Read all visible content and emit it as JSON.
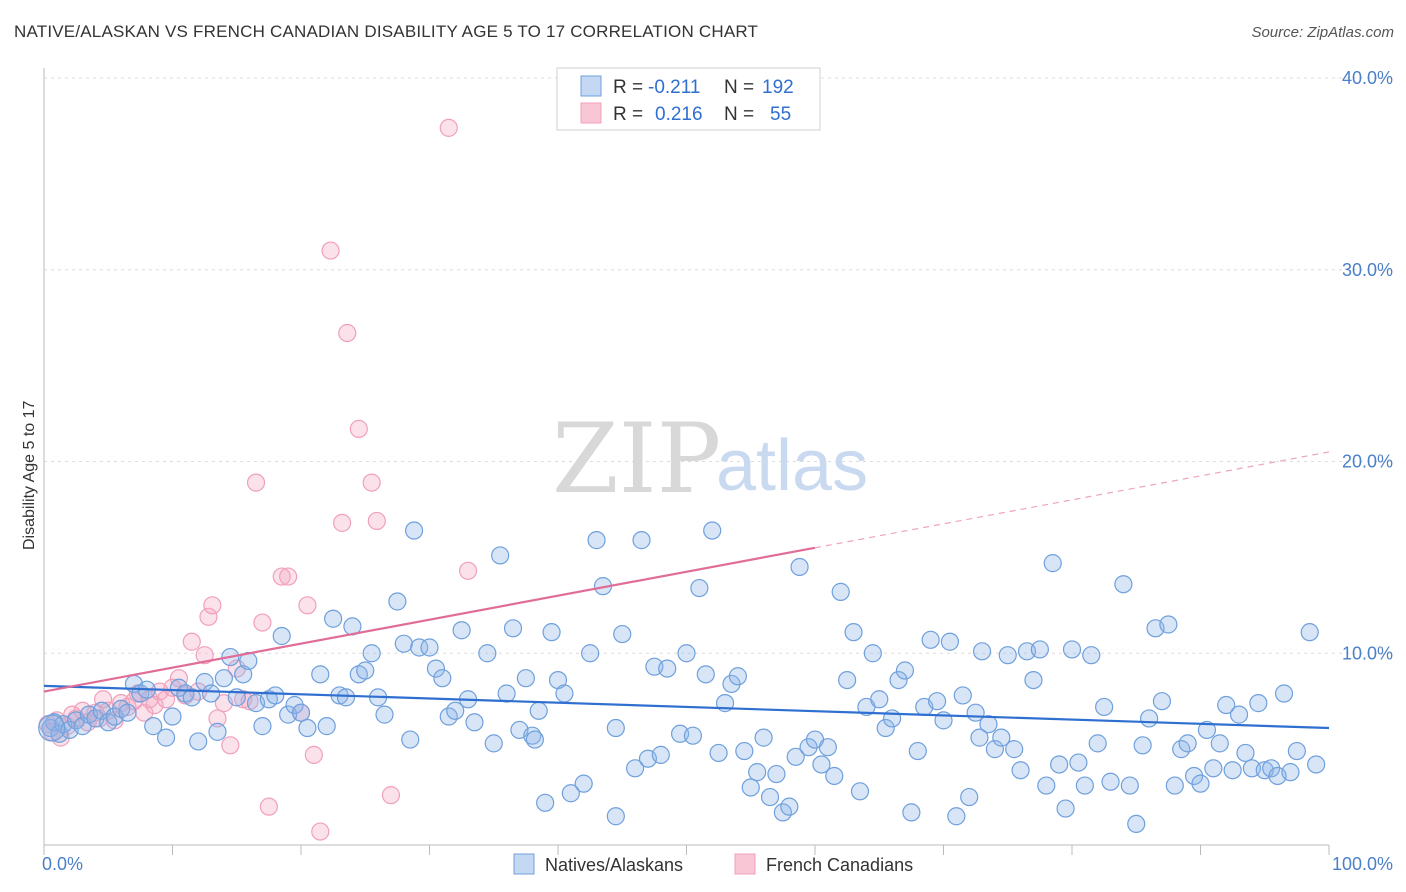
{
  "title": "NATIVE/ALASKAN VS FRENCH CANADIAN DISABILITY AGE 5 TO 17 CORRELATION CHART",
  "source": "Source: ZipAtlas.com",
  "watermark": {
    "zip": "ZIP",
    "atlas": "atlas"
  },
  "colors": {
    "blue": "#6fa0dc",
    "pink": "#f0a0bc",
    "blue_line": "#2f6fd0",
    "pink_line": "#e06d98",
    "tick": "#4a7fc9"
  },
  "legend": {
    "rows": [
      {
        "r_label": "R =",
        "r_value": "-0.211",
        "n_label": "N =",
        "n_value": "192"
      },
      {
        "r_label": "R =",
        "r_value": "0.216",
        "n_label": "N =",
        "n_value": "55"
      }
    ]
  },
  "bottom_legend": [
    "Natives/Alaskans",
    "French Canadians"
  ],
  "chart_data": {
    "type": "scatter",
    "title": "NATIVE/ALASKAN VS FRENCH CANADIAN DISABILITY AGE 5 TO 17 CORRELATION CHART",
    "ylabel": "Disability Age 5 to 17",
    "xlabel": "",
    "xlim": [
      0,
      100
    ],
    "ylim": [
      0,
      40
    ],
    "x_tick_labels": [
      "0.0%",
      "100.0%"
    ],
    "y_ticks": [
      10,
      20,
      30,
      40
    ],
    "y_tick_labels": [
      "10.0%",
      "20.0%",
      "30.0%",
      "40.0%"
    ],
    "grid": "horizontal dashed",
    "legend_position": "top-center",
    "series": [
      {
        "name": "Natives/Alaskans",
        "color": "#6fa0dc",
        "r": -0.211,
        "n": 192,
        "trend": {
          "x": [
            0,
            100
          ],
          "y": [
            8.3,
            6.1
          ]
        },
        "points": [
          [
            0.5,
            6.1
          ],
          [
            0.8,
            6.4
          ],
          [
            1.2,
            5.8
          ],
          [
            1.5,
            6.3
          ],
          [
            2.0,
            6.0
          ],
          [
            2.5,
            6.5
          ],
          [
            3.0,
            6.2
          ],
          [
            3.5,
            6.8
          ],
          [
            4.0,
            6.6
          ],
          [
            4.5,
            7.0
          ],
          [
            5.0,
            6.4
          ],
          [
            5.5,
            6.7
          ],
          [
            6.0,
            7.1
          ],
          [
            6.5,
            6.9
          ],
          [
            7.0,
            8.4
          ],
          [
            7.5,
            7.9
          ],
          [
            8.0,
            8.1
          ],
          [
            8.5,
            6.2
          ],
          [
            9.5,
            5.6
          ],
          [
            10.0,
            6.7
          ],
          [
            10.5,
            8.2
          ],
          [
            11.0,
            7.9
          ],
          [
            11.5,
            7.7
          ],
          [
            12.0,
            5.4
          ],
          [
            12.5,
            8.5
          ],
          [
            13.0,
            7.9
          ],
          [
            13.5,
            5.9
          ],
          [
            14.0,
            8.7
          ],
          [
            14.5,
            9.8
          ],
          [
            15.0,
            7.7
          ],
          [
            15.5,
            8.9
          ],
          [
            15.9,
            9.6
          ],
          [
            16.5,
            7.4
          ],
          [
            17.0,
            6.2
          ],
          [
            17.5,
            7.6
          ],
          [
            18.0,
            7.8
          ],
          [
            18.5,
            10.9
          ],
          [
            19.0,
            6.8
          ],
          [
            19.5,
            7.3
          ],
          [
            20.0,
            6.9
          ],
          [
            20.5,
            6.1
          ],
          [
            21.5,
            8.9
          ],
          [
            22.0,
            6.2
          ],
          [
            22.5,
            11.8
          ],
          [
            23.0,
            7.8
          ],
          [
            23.5,
            7.7
          ],
          [
            24.0,
            11.4
          ],
          [
            24.5,
            8.9
          ],
          [
            25.0,
            9.1
          ],
          [
            25.5,
            10.0
          ],
          [
            26.0,
            7.7
          ],
          [
            26.5,
            6.8
          ],
          [
            27.5,
            12.7
          ],
          [
            28.0,
            10.5
          ],
          [
            28.5,
            5.5
          ],
          [
            28.8,
            16.4
          ],
          [
            29.2,
            10.3
          ],
          [
            30.0,
            10.3
          ],
          [
            30.5,
            9.2
          ],
          [
            31.0,
            8.7
          ],
          [
            31.5,
            6.7
          ],
          [
            32.0,
            7.0
          ],
          [
            32.5,
            11.2
          ],
          [
            33.0,
            7.6
          ],
          [
            33.5,
            6.4
          ],
          [
            34.5,
            10.0
          ],
          [
            35.0,
            5.3
          ],
          [
            35.5,
            15.1
          ],
          [
            36.0,
            7.9
          ],
          [
            36.5,
            11.3
          ],
          [
            37.0,
            6.0
          ],
          [
            37.5,
            8.7
          ],
          [
            38.0,
            5.7
          ],
          [
            38.5,
            7.0
          ],
          [
            39.0,
            2.2
          ],
          [
            39.5,
            11.1
          ],
          [
            40.0,
            8.6
          ],
          [
            40.5,
            7.9
          ],
          [
            41.0,
            2.7
          ],
          [
            42.0,
            3.2
          ],
          [
            42.5,
            10.0
          ],
          [
            43.0,
            15.9
          ],
          [
            43.5,
            13.5
          ],
          [
            44.5,
            6.1
          ],
          [
            44.5,
            1.5
          ],
          [
            45.0,
            11.0
          ],
          [
            46.0,
            4.0
          ],
          [
            46.5,
            15.9
          ],
          [
            47.0,
            4.5
          ],
          [
            47.5,
            9.3
          ],
          [
            48.0,
            4.7
          ],
          [
            48.5,
            9.2
          ],
          [
            49.5,
            5.8
          ],
          [
            50.0,
            10.0
          ],
          [
            50.5,
            5.7
          ],
          [
            51.0,
            13.4
          ],
          [
            51.5,
            8.9
          ],
          [
            52.0,
            16.4
          ],
          [
            52.5,
            4.8
          ],
          [
            53.0,
            7.4
          ],
          [
            53.5,
            8.4
          ],
          [
            54.0,
            8.8
          ],
          [
            54.5,
            4.9
          ],
          [
            55.0,
            3.0
          ],
          [
            55.5,
            3.8
          ],
          [
            56.0,
            5.6
          ],
          [
            56.5,
            2.5
          ],
          [
            57.0,
            3.7
          ],
          [
            57.5,
            1.7
          ],
          [
            58.0,
            2.0
          ],
          [
            58.5,
            4.6
          ],
          [
            58.8,
            14.5
          ],
          [
            59.5,
            5.1
          ],
          [
            60.0,
            5.5
          ],
          [
            60.5,
            4.2
          ],
          [
            61.0,
            5.1
          ],
          [
            61.5,
            3.6
          ],
          [
            62.0,
            13.2
          ],
          [
            62.5,
            8.6
          ],
          [
            63.0,
            11.1
          ],
          [
            63.5,
            2.8
          ],
          [
            64.0,
            7.2
          ],
          [
            64.5,
            10.0
          ],
          [
            65.0,
            7.6
          ],
          [
            65.5,
            6.1
          ],
          [
            66.0,
            6.6
          ],
          [
            66.5,
            8.6
          ],
          [
            67.0,
            9.1
          ],
          [
            67.5,
            1.7
          ],
          [
            68.0,
            4.9
          ],
          [
            68.5,
            7.2
          ],
          [
            69.0,
            10.7
          ],
          [
            69.5,
            7.5
          ],
          [
            70.0,
            6.5
          ],
          [
            70.5,
            10.6
          ],
          [
            71.0,
            1.5
          ],
          [
            71.5,
            7.8
          ],
          [
            72.0,
            2.5
          ],
          [
            72.5,
            6.9
          ],
          [
            73.0,
            10.1
          ],
          [
            73.5,
            6.3
          ],
          [
            74.0,
            5.0
          ],
          [
            74.5,
            5.6
          ],
          [
            75.0,
            9.9
          ],
          [
            75.5,
            5.0
          ],
          [
            76.0,
            3.9
          ],
          [
            76.5,
            10.1
          ],
          [
            77.0,
            8.6
          ],
          [
            77.5,
            10.2
          ],
          [
            78.0,
            3.1
          ],
          [
            78.5,
            14.7
          ],
          [
            79.0,
            4.2
          ],
          [
            79.5,
            1.9
          ],
          [
            80.0,
            10.2
          ],
          [
            80.5,
            4.3
          ],
          [
            81.0,
            3.1
          ],
          [
            81.5,
            9.9
          ],
          [
            82.0,
            5.3
          ],
          [
            82.5,
            7.2
          ],
          [
            83.0,
            3.3
          ],
          [
            84.0,
            13.6
          ],
          [
            84.5,
            3.1
          ],
          [
            85.0,
            1.1
          ],
          [
            85.5,
            5.2
          ],
          [
            86.0,
            6.6
          ],
          [
            86.5,
            11.3
          ],
          [
            87.0,
            7.5
          ],
          [
            87.5,
            11.5
          ],
          [
            88.0,
            3.1
          ],
          [
            88.5,
            5.0
          ],
          [
            89.0,
            5.3
          ],
          [
            89.5,
            3.6
          ],
          [
            90.0,
            3.2
          ],
          [
            90.5,
            6.0
          ],
          [
            91.0,
            4.0
          ],
          [
            91.5,
            5.3
          ],
          [
            92.0,
            7.3
          ],
          [
            92.5,
            3.9
          ],
          [
            93.0,
            6.8
          ],
          [
            93.5,
            4.8
          ],
          [
            94.0,
            4.0
          ],
          [
            94.5,
            7.4
          ],
          [
            95.0,
            3.9
          ],
          [
            95.5,
            4.0
          ],
          [
            96.0,
            3.6
          ],
          [
            96.5,
            7.9
          ],
          [
            97.0,
            3.8
          ],
          [
            97.5,
            4.9
          ],
          [
            98.5,
            11.1
          ],
          [
            99.0,
            4.2
          ],
          [
            72.8,
            5.6
          ],
          [
            38.2,
            5.5
          ]
        ]
      },
      {
        "name": "French Canadians",
        "color": "#f0a0bc",
        "r": 0.216,
        "n": 55,
        "trend": {
          "x": [
            0,
            60
          ],
          "y": [
            8.0,
            15.5
          ]
        },
        "trend_dashed": {
          "x": [
            60,
            100
          ],
          "y": [
            15.5,
            20.5
          ]
        },
        "points": [
          [
            0.3,
            6.3
          ],
          [
            0.6,
            5.9
          ],
          [
            1.0,
            6.5
          ],
          [
            1.3,
            5.6
          ],
          [
            1.8,
            6.2
          ],
          [
            2.2,
            6.8
          ],
          [
            2.5,
            6.6
          ],
          [
            3.0,
            7.0
          ],
          [
            3.4,
            6.4
          ],
          [
            4.0,
            6.9
          ],
          [
            4.3,
            6.6
          ],
          [
            4.6,
            7.6
          ],
          [
            5.0,
            7.0
          ],
          [
            5.5,
            6.5
          ],
          [
            6.0,
            7.4
          ],
          [
            6.5,
            7.2
          ],
          [
            7.0,
            7.5
          ],
          [
            7.3,
            7.9
          ],
          [
            7.8,
            6.9
          ],
          [
            8.2,
            7.6
          ],
          [
            8.6,
            7.3
          ],
          [
            9.0,
            8.0
          ],
          [
            9.5,
            7.6
          ],
          [
            10.0,
            8.2
          ],
          [
            10.5,
            8.7
          ],
          [
            11.0,
            7.8
          ],
          [
            11.5,
            10.6
          ],
          [
            12.0,
            8.0
          ],
          [
            12.5,
            9.9
          ],
          [
            12.8,
            11.9
          ],
          [
            13.1,
            12.5
          ],
          [
            13.5,
            6.6
          ],
          [
            14.0,
            7.4
          ],
          [
            14.5,
            5.2
          ],
          [
            15.0,
            9.2
          ],
          [
            15.5,
            7.6
          ],
          [
            16.0,
            7.5
          ],
          [
            16.5,
            18.9
          ],
          [
            17.0,
            11.6
          ],
          [
            17.5,
            2.0
          ],
          [
            18.5,
            14.0
          ],
          [
            19.0,
            14.0
          ],
          [
            20.0,
            6.9
          ],
          [
            20.5,
            12.5
          ],
          [
            21.0,
            4.7
          ],
          [
            21.5,
            0.7
          ],
          [
            22.3,
            31.0
          ],
          [
            23.2,
            16.8
          ],
          [
            23.6,
            26.7
          ],
          [
            24.5,
            21.7
          ],
          [
            25.5,
            18.9
          ],
          [
            25.9,
            16.9
          ],
          [
            27.0,
            2.6
          ],
          [
            31.5,
            37.4
          ],
          [
            33.0,
            14.3
          ]
        ]
      }
    ]
  }
}
